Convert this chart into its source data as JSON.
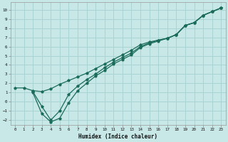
{
  "xlabel": "Humidex (Indice chaleur)",
  "xlim": [
    -0.5,
    23.5
  ],
  "ylim": [
    -2.5,
    10.8
  ],
  "xticks": [
    0,
    1,
    2,
    3,
    4,
    5,
    6,
    7,
    8,
    9,
    10,
    11,
    12,
    13,
    14,
    15,
    16,
    17,
    18,
    19,
    20,
    21,
    22,
    23
  ],
  "yticks": [
    -2,
    -1,
    0,
    1,
    2,
    3,
    4,
    5,
    6,
    7,
    8,
    9,
    10
  ],
  "bg_color": "#c8e8e8",
  "grid_color": "#aad4d4",
  "line_color": "#1a6b5a",
  "line1_x": [
    0,
    1,
    2,
    3,
    4,
    5,
    6,
    7,
    8,
    9,
    10,
    11,
    12,
    13,
    14,
    15,
    16,
    17,
    18,
    19,
    20,
    21,
    22,
    23
  ],
  "line1_y": [
    1.5,
    1.5,
    1.2,
    1.1,
    1.4,
    1.9,
    2.3,
    2.7,
    3.1,
    3.6,
    4.1,
    4.6,
    5.1,
    5.6,
    6.2,
    6.5,
    6.7,
    6.9,
    7.3,
    8.3,
    8.6,
    9.4,
    9.8,
    10.2
  ],
  "line2_x": [
    2,
    3,
    4,
    5,
    6,
    7,
    8,
    9,
    10,
    11,
    12,
    13,
    14,
    15,
    16,
    17,
    18,
    19,
    20,
    21,
    22,
    23
  ],
  "line2_y": [
    1.0,
    -1.3,
    -2.2,
    -1.8,
    -0.1,
    1.2,
    2.0,
    2.8,
    3.4,
    4.1,
    4.6,
    5.1,
    5.9,
    6.3,
    6.6,
    6.9,
    7.3,
    8.3,
    8.6,
    9.4,
    9.8,
    10.2
  ],
  "line3_x": [
    2,
    3,
    4,
    5,
    6,
    7,
    8,
    9,
    10,
    11,
    12,
    13,
    14,
    15,
    16,
    17,
    18,
    19,
    20,
    21,
    22,
    23
  ],
  "line3_y": [
    1.1,
    -0.5,
    -2.0,
    -1.0,
    0.8,
    1.7,
    2.4,
    3.0,
    3.7,
    4.3,
    4.8,
    5.3,
    6.0,
    6.4,
    6.7,
    6.9,
    7.3,
    8.3,
    8.6,
    9.4,
    9.8,
    10.2
  ]
}
